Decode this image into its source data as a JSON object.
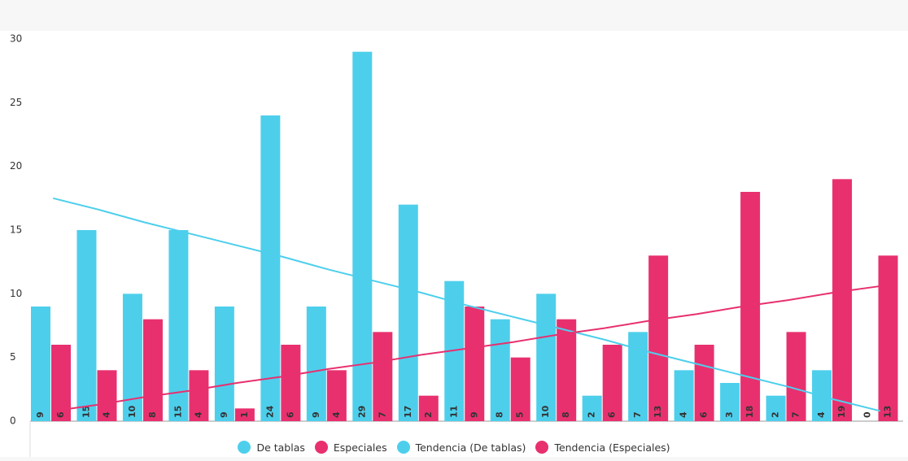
{
  "chart_data": {
    "type": "bar",
    "categories": [
      null,
      null,
      null,
      null,
      null,
      null,
      null,
      null,
      null,
      null,
      null,
      null,
      null,
      null,
      null,
      null,
      null,
      null,
      null
    ],
    "series": [
      {
        "name": "De tablas",
        "color": "#4dcfec",
        "values": [
          9,
          15,
          10,
          15,
          9,
          24,
          9,
          29,
          17,
          11,
          8,
          10,
          2,
          7,
          4,
          3,
          2,
          4,
          0
        ]
      },
      {
        "name": "Especiales",
        "color": "#e8306f",
        "values": [
          6,
          4,
          8,
          4,
          1,
          6,
          4,
          7,
          2,
          9,
          5,
          8,
          6,
          13,
          6,
          18,
          7,
          19,
          13
        ]
      },
      {
        "name": "Tendencia (De tablas)",
        "type": "line",
        "color": "#4dcfec",
        "values": [
          17.5,
          16.6,
          15.6,
          14.7,
          13.8,
          12.9,
          11.9,
          11.0,
          10.1,
          9.1,
          8.2,
          7.3,
          6.4,
          5.4,
          4.5,
          3.6,
          2.7,
          1.7,
          0.8
        ]
      },
      {
        "name": "Tendencia (Especiales)",
        "type": "line",
        "color": "#e8306f",
        "values": [
          0.8,
          1.3,
          1.9,
          2.4,
          3.0,
          3.5,
          4.1,
          4.6,
          5.2,
          5.7,
          6.2,
          6.8,
          7.3,
          7.9,
          8.4,
          9.0,
          9.5,
          10.1,
          10.6
        ]
      }
    ],
    "ylim": [
      0,
      30
    ],
    "yticks": [
      0,
      5,
      10,
      15,
      20,
      25,
      30
    ],
    "legend": "bottom"
  }
}
